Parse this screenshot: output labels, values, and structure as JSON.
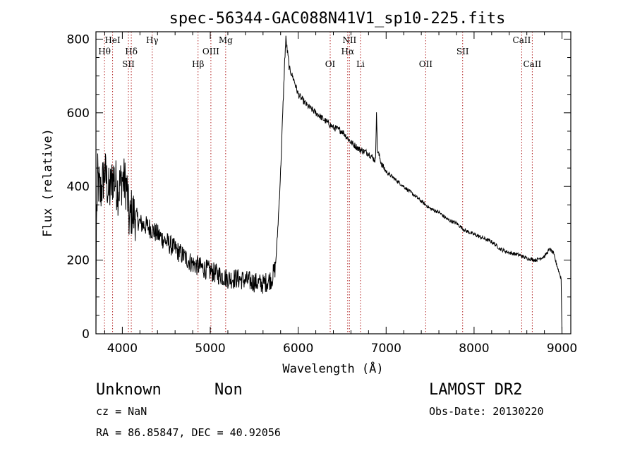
{
  "chart_data": {
    "type": "line",
    "title": "spec-56344-GAC088N41V1_sp10-225.fits",
    "xlabel": "Wavelength (Å)",
    "ylabel": "Flux (relative)",
    "xlim": [
      3700,
      9100
    ],
    "ylim": [
      0,
      820
    ],
    "x_ticks": [
      4000,
      5000,
      6000,
      7000,
      8000,
      9000
    ],
    "y_ticks": [
      0,
      200,
      400,
      600,
      800
    ],
    "grid": false,
    "line_color": "#000000",
    "marker_color": "#b22222",
    "spectral_lines": [
      {
        "label": "Hθ",
        "x": 3797,
        "row": 2
      },
      {
        "label": "HeI",
        "x": 3889,
        "row": 1
      },
      {
        "label": "Hδ",
        "x": 4102,
        "row": 2
      },
      {
        "label": "SII",
        "x": 4069,
        "row": 3
      },
      {
        "label": "Hγ",
        "x": 4340,
        "row": 1
      },
      {
        "label": "Hβ",
        "x": 4861,
        "row": 3
      },
      {
        "label": "OIII",
        "x": 5007,
        "row": 2
      },
      {
        "label": "Mg",
        "x": 5175,
        "row": 1
      },
      {
        "label": "OI",
        "x": 6364,
        "row": 3
      },
      {
        "label": "NII",
        "x": 6583,
        "row": 1
      },
      {
        "label": "Hα",
        "x": 6563,
        "row": 2
      },
      {
        "label": "Li",
        "x": 6708,
        "row": 3
      },
      {
        "label": "OII",
        "x": 7450,
        "row": 3
      },
      {
        "label": "SII",
        "x": 7870,
        "row": 2
      },
      {
        "label": "CaII",
        "x": 8542,
        "row": 1
      },
      {
        "label": "CaII",
        "x": 8662,
        "row": 3
      }
    ],
    "spectrum_anchors": [
      [
        3700,
        0
      ],
      [
        3705,
        300
      ],
      [
        3720,
        420
      ],
      [
        3750,
        380
      ],
      [
        3800,
        440
      ],
      [
        3850,
        380
      ],
      [
        3900,
        430
      ],
      [
        3950,
        390
      ],
      [
        4000,
        420
      ],
      [
        4050,
        400
      ],
      [
        4080,
        300
      ],
      [
        4100,
        330
      ],
      [
        4150,
        320
      ],
      [
        4200,
        300
      ],
      [
        4300,
        290
      ],
      [
        4400,
        270
      ],
      [
        4500,
        250
      ],
      [
        4600,
        230
      ],
      [
        4700,
        210
      ],
      [
        4800,
        190
      ],
      [
        4900,
        180
      ],
      [
        5000,
        170
      ],
      [
        5100,
        160
      ],
      [
        5200,
        150
      ],
      [
        5300,
        150
      ],
      [
        5400,
        145
      ],
      [
        5500,
        140
      ],
      [
        5600,
        135
      ],
      [
        5700,
        150
      ],
      [
        5740,
        180
      ],
      [
        5760,
        250
      ],
      [
        5780,
        340
      ],
      [
        5800,
        440
      ],
      [
        5820,
        570
      ],
      [
        5840,
        700
      ],
      [
        5850,
        760
      ],
      [
        5860,
        800
      ],
      [
        5880,
        760
      ],
      [
        5900,
        720
      ],
      [
        5950,
        690
      ],
      [
        6000,
        650
      ],
      [
        6100,
        620
      ],
      [
        6200,
        600
      ],
      [
        6300,
        580
      ],
      [
        6400,
        560
      ],
      [
        6500,
        550
      ],
      [
        6600,
        520
      ],
      [
        6700,
        500
      ],
      [
        6800,
        490
      ],
      [
        6880,
        470
      ],
      [
        6890,
        610
      ],
      [
        6900,
        500
      ],
      [
        6950,
        460
      ],
      [
        7000,
        440
      ],
      [
        7100,
        420
      ],
      [
        7200,
        400
      ],
      [
        7300,
        380
      ],
      [
        7400,
        360
      ],
      [
        7500,
        340
      ],
      [
        7600,
        330
      ],
      [
        7700,
        310
      ],
      [
        7800,
        300
      ],
      [
        7900,
        280
      ],
      [
        8000,
        270
      ],
      [
        8100,
        260
      ],
      [
        8200,
        250
      ],
      [
        8300,
        230
      ],
      [
        8400,
        220
      ],
      [
        8500,
        215
      ],
      [
        8600,
        205
      ],
      [
        8700,
        200
      ],
      [
        8800,
        210
      ],
      [
        8860,
        230
      ],
      [
        8900,
        220
      ],
      [
        8950,
        180
      ],
      [
        8990,
        150
      ],
      [
        9000,
        0
      ]
    ]
  },
  "info": {
    "object_class": "Unknown",
    "subclass": "Non",
    "survey": "LAMOST DR2",
    "redshift": "cz = NaN",
    "obs_date": "Obs-Date: 20130220",
    "coords": "RA =  86.85847, DEC =  40.92056"
  }
}
